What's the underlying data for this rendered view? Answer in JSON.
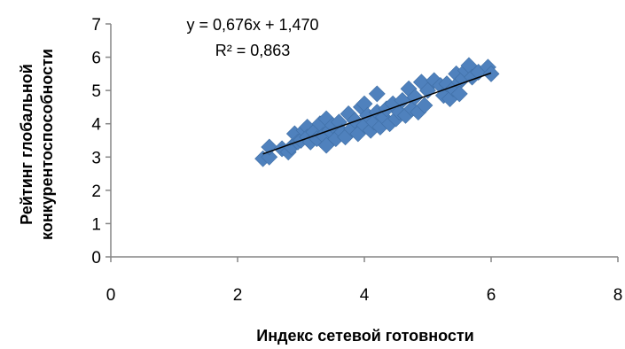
{
  "chart_data": {
    "type": "scatter",
    "title": "",
    "xlabel": "Индекс сетевой готовности",
    "ylabel_lines": [
      "Рейтинг глобальной",
      "конкурентоспособности"
    ],
    "xlim": [
      0,
      8
    ],
    "ylim": [
      0,
      7
    ],
    "x_ticks": [
      "0",
      "2",
      "4",
      "6",
      "8"
    ],
    "y_ticks": [
      "0",
      "1",
      "2",
      "3",
      "4",
      "5",
      "6",
      "7"
    ],
    "grid": false,
    "legend": "none",
    "marker": "diamond",
    "point_color": "#4f81bd",
    "trendline": {
      "type": "linear",
      "equation": "y = 0,676x + 1,470",
      "r_squared": "R² = 0,863",
      "slope": 0.676,
      "intercept": 1.47,
      "x_range": [
        2.4,
        6.0
      ],
      "color": "#000000"
    },
    "points": [
      [
        2.4,
        2.95
      ],
      [
        2.5,
        3.0
      ],
      [
        2.5,
        3.3
      ],
      [
        2.7,
        3.25
      ],
      [
        2.8,
        3.15
      ],
      [
        2.85,
        3.3
      ],
      [
        2.9,
        3.7
      ],
      [
        2.95,
        3.45
      ],
      [
        3.0,
        3.5
      ],
      [
        3.05,
        3.8
      ],
      [
        3.1,
        3.9
      ],
      [
        3.1,
        3.6
      ],
      [
        3.15,
        3.45
      ],
      [
        3.2,
        3.75
      ],
      [
        3.25,
        3.55
      ],
      [
        3.3,
        4.0
      ],
      [
        3.35,
        3.65
      ],
      [
        3.4,
        3.35
      ],
      [
        3.4,
        4.15
      ],
      [
        3.45,
        3.8
      ],
      [
        3.5,
        3.95
      ],
      [
        3.55,
        3.55
      ],
      [
        3.6,
        4.05
      ],
      [
        3.65,
        3.75
      ],
      [
        3.7,
        3.6
      ],
      [
        3.75,
        4.3
      ],
      [
        3.8,
        3.85
      ],
      [
        3.85,
        4.1
      ],
      [
        3.9,
        3.7
      ],
      [
        3.95,
        4.5
      ],
      [
        4.0,
        3.95
      ],
      [
        4.0,
        4.6
      ],
      [
        4.05,
        4.25
      ],
      [
        4.1,
        3.8
      ],
      [
        4.15,
        4.05
      ],
      [
        4.2,
        4.35
      ],
      [
        4.2,
        4.9
      ],
      [
        4.25,
        3.9
      ],
      [
        4.3,
        4.2
      ],
      [
        4.35,
        4.45
      ],
      [
        4.4,
        4.0
      ],
      [
        4.45,
        4.6
      ],
      [
        4.5,
        4.15
      ],
      [
        4.55,
        4.35
      ],
      [
        4.6,
        4.7
      ],
      [
        4.65,
        4.25
      ],
      [
        4.7,
        5.05
      ],
      [
        4.75,
        4.45
      ],
      [
        4.8,
        4.8
      ],
      [
        4.85,
        4.35
      ],
      [
        4.9,
        5.25
      ],
      [
        4.95,
        4.55
      ],
      [
        5.0,
        5.0
      ],
      [
        5.1,
        5.3
      ],
      [
        5.2,
        5.15
      ],
      [
        5.25,
        4.85
      ],
      [
        5.3,
        5.2
      ],
      [
        5.35,
        4.75
      ],
      [
        5.4,
        5.05
      ],
      [
        5.45,
        5.5
      ],
      [
        5.5,
        5.25
      ],
      [
        5.5,
        4.9
      ],
      [
        5.55,
        5.35
      ],
      [
        5.6,
        5.6
      ],
      [
        5.65,
        5.75
      ],
      [
        5.7,
        5.4
      ],
      [
        5.8,
        5.55
      ],
      [
        5.95,
        5.7
      ],
      [
        6.0,
        5.5
      ]
    ]
  }
}
